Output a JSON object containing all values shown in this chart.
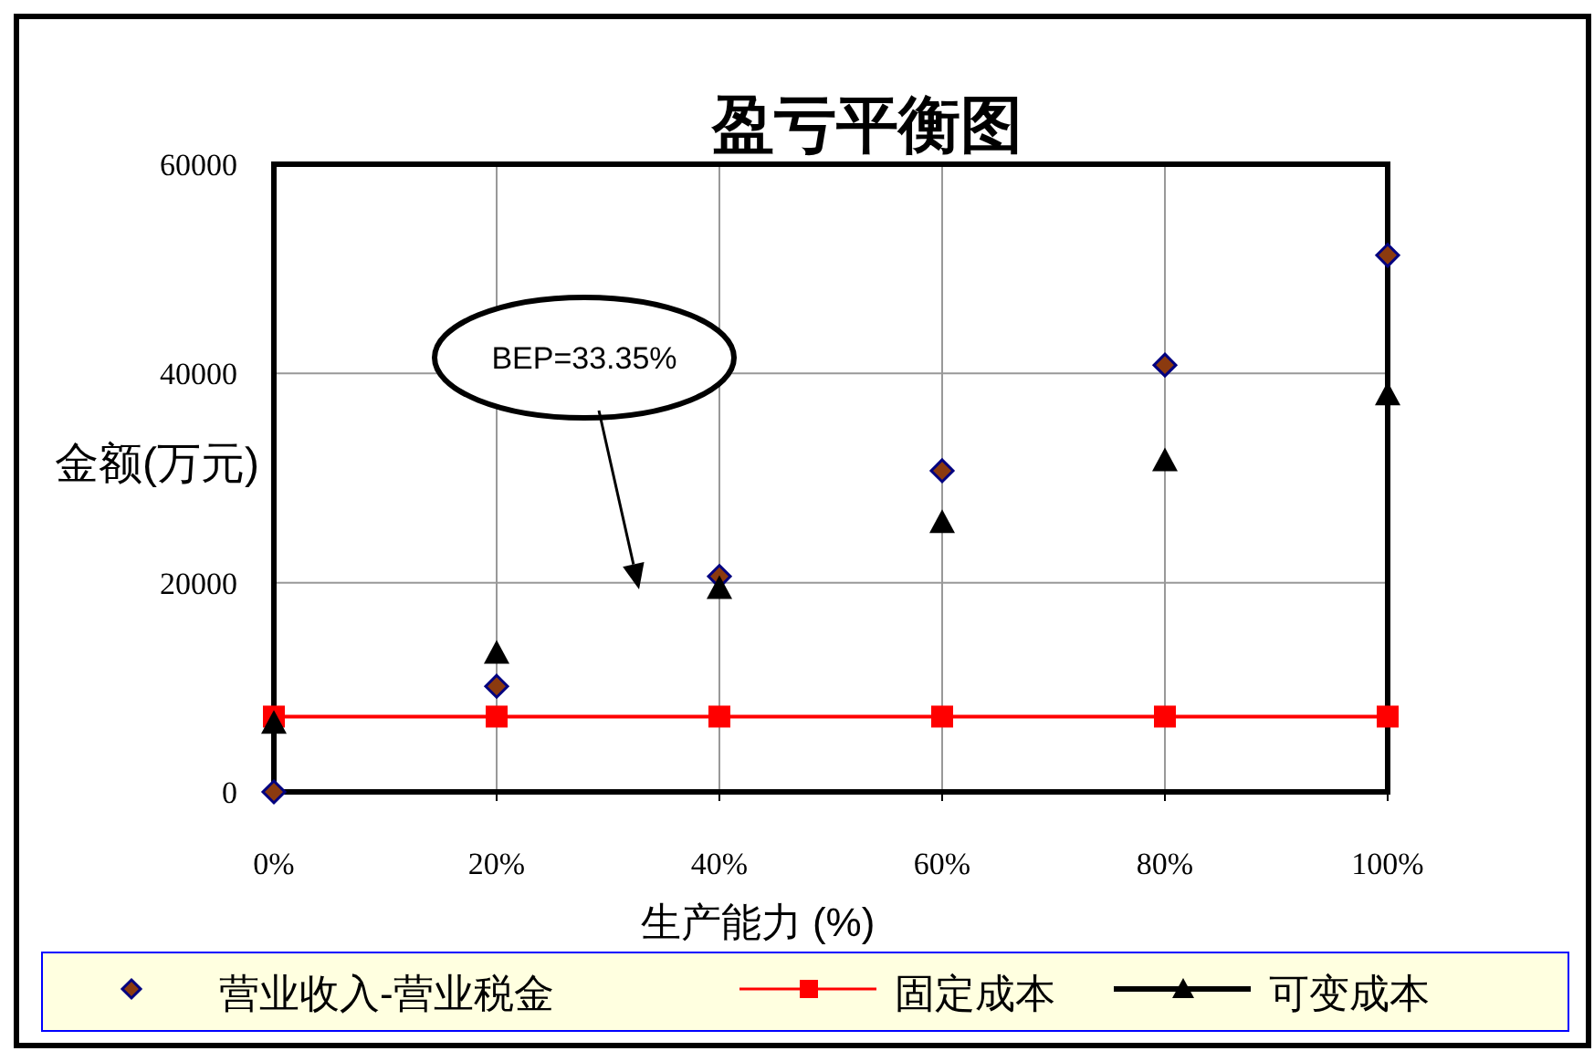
{
  "chart_data": {
    "type": "scatter",
    "title": "盈亏平衡图",
    "xlabel": "生产能力 (%)",
    "ylabel": "金额(万元)",
    "x": [
      0,
      20,
      40,
      60,
      80,
      100
    ],
    "xlim": [
      0,
      100
    ],
    "xticks": [
      {
        "value": 0,
        "label": "0%"
      },
      {
        "value": 20,
        "label": "20%"
      },
      {
        "value": 40,
        "label": "40%"
      },
      {
        "value": 60,
        "label": "60%"
      },
      {
        "value": 80,
        "label": "80%"
      },
      {
        "value": 100,
        "label": "100%"
      }
    ],
    "ylim": [
      0,
      60000
    ],
    "yticks": [
      0,
      20000,
      40000,
      60000
    ],
    "grid": true,
    "legend": "bottom",
    "series": [
      {
        "name": "营业收入-营业税金",
        "type": "scatter",
        "marker": "diamond",
        "color": "#8b3a0f",
        "values": [
          0,
          10100,
          20600,
          30700,
          40800,
          51300
        ]
      },
      {
        "name": "固定成本",
        "type": "line",
        "marker": "square",
        "color": "#ff0000",
        "values": [
          7200,
          7200,
          7200,
          7200,
          7200,
          7200
        ]
      },
      {
        "name": "可变成本",
        "type": "scatter",
        "marker": "triangle",
        "color": "#000000",
        "values": [
          6600,
          13300,
          19500,
          25800,
          31700,
          38000
        ]
      }
    ],
    "annotations": [
      "BEP=33.35%"
    ]
  }
}
